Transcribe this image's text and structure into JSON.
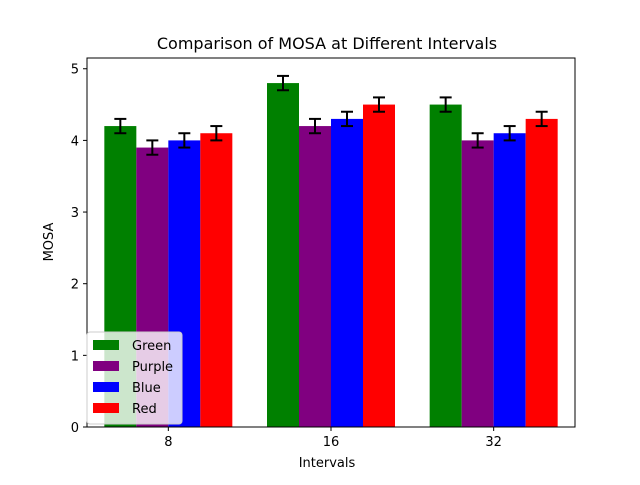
{
  "chart_data": {
    "type": "bar",
    "title": "Comparison of MOSA at Different Intervals",
    "xlabel": "Intervals",
    "ylabel": "MOSA",
    "categories": [
      "8",
      "16",
      "32"
    ],
    "ylim": [
      0,
      5.15
    ],
    "yticks": [
      0,
      1,
      2,
      3,
      4,
      5
    ],
    "grid": false,
    "legend_position": "lower-left",
    "series": [
      {
        "name": "Green",
        "color": "#008000",
        "values": [
          4.2,
          4.8,
          4.5
        ],
        "errors": [
          0.1,
          0.1,
          0.1
        ]
      },
      {
        "name": "Purple",
        "color": "#800080",
        "values": [
          3.9,
          4.2,
          4.0
        ],
        "errors": [
          0.1,
          0.1,
          0.1
        ]
      },
      {
        "name": "Blue",
        "color": "#0000ff",
        "values": [
          4.0,
          4.3,
          4.1
        ],
        "errors": [
          0.1,
          0.1,
          0.1
        ]
      },
      {
        "name": "Red",
        "color": "#ff0000",
        "values": [
          4.1,
          4.5,
          4.3
        ],
        "errors": [
          0.1,
          0.1,
          0.1
        ]
      }
    ]
  }
}
